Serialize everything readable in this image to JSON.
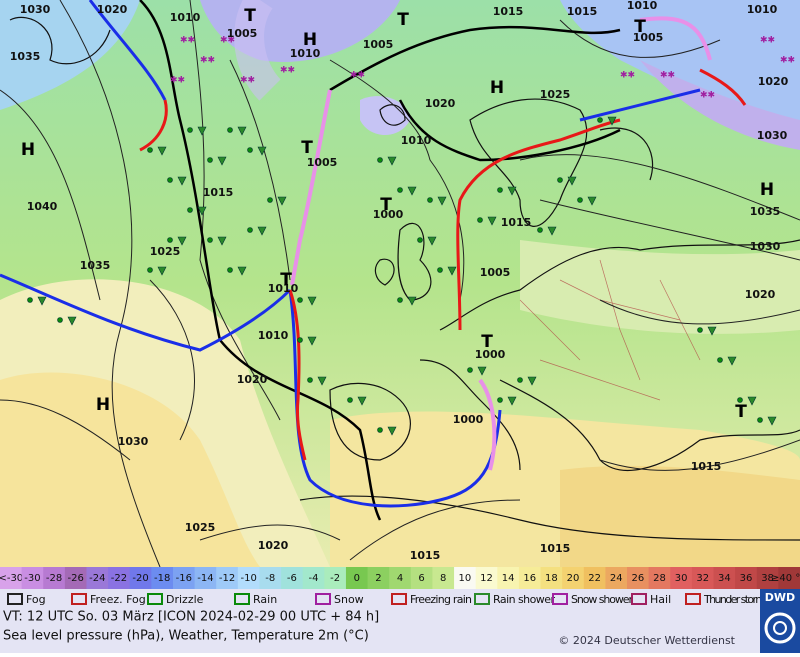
{
  "map": {
    "pressure_labels": [
      1030,
      1020,
      1010,
      1005,
      1010,
      1005,
      1015,
      1015,
      1010,
      1010,
      1005,
      1020,
      1030,
      1035,
      1040,
      1035,
      1025,
      1015,
      1005,
      1000,
      1010,
      1020,
      1025,
      1015,
      1005,
      1010,
      1010,
      1000,
      1000,
      1020,
      1030,
      1025,
      1020,
      1015,
      1015,
      1015,
      1020,
      1030,
      1035
    ],
    "centers": [
      "H",
      "H",
      "H",
      "T",
      "T",
      "T",
      "T",
      "H",
      "H",
      "T",
      "T",
      "T",
      "T"
    ]
  },
  "temperature_scale": {
    "labels": [
      "<-30",
      "-30",
      "-28",
      "-26",
      "-24",
      "-22",
      "-20",
      "-18",
      "-16",
      "-14",
      "-12",
      "-10",
      "-8",
      "-6",
      "-4",
      "-2",
      "0",
      "2",
      "4",
      "6",
      "8",
      "10",
      "12",
      "14",
      "16",
      "18",
      "20",
      "22",
      "24",
      "26",
      "28",
      "30",
      "32",
      "34",
      "36",
      "38",
      "≥40 °C"
    ],
    "colors": [
      "#d8a2ea",
      "#c98ee2",
      "#b77ad2",
      "#a46ab6",
      "#9a78d8",
      "#8a72e2",
      "#7078ea",
      "#6c8cf0",
      "#7ca2f2",
      "#8cb6f4",
      "#9ecaf8",
      "#b2dcfc",
      "#a8dcee",
      "#a0e2dc",
      "#a2e8cc",
      "#aaecbc",
      "#78c850",
      "#8cd060",
      "#a0d870",
      "#b4e080",
      "#c8e890",
      "#fafaf2",
      "#fafad0",
      "#f8f4b0",
      "#f6ec98",
      "#f4e080",
      "#f4d270",
      "#f0c060",
      "#eca860",
      "#e89060",
      "#e47860",
      "#e06060",
      "#d85858",
      "#cc5050",
      "#c04848",
      "#b04040",
      "#a03838"
    ]
  },
  "weather_legend": [
    "Fog",
    "Freez. Fog",
    "Drizzle",
    "Rain",
    "Snow",
    "Freezing rain",
    "Rain shower",
    "Snow shower",
    "Hail",
    "Thunder storm"
  ],
  "footer": {
    "valid_time": "VT: 12 UTC So.  03 März [ICON 2024-02-29  00 UTC + 84 h]",
    "description": "Sea level pressure (hPa), Weather, Temperature 2m (°C)",
    "copyright": "© 2024 Deutscher Wetterdienst",
    "logo": "DWD"
  }
}
